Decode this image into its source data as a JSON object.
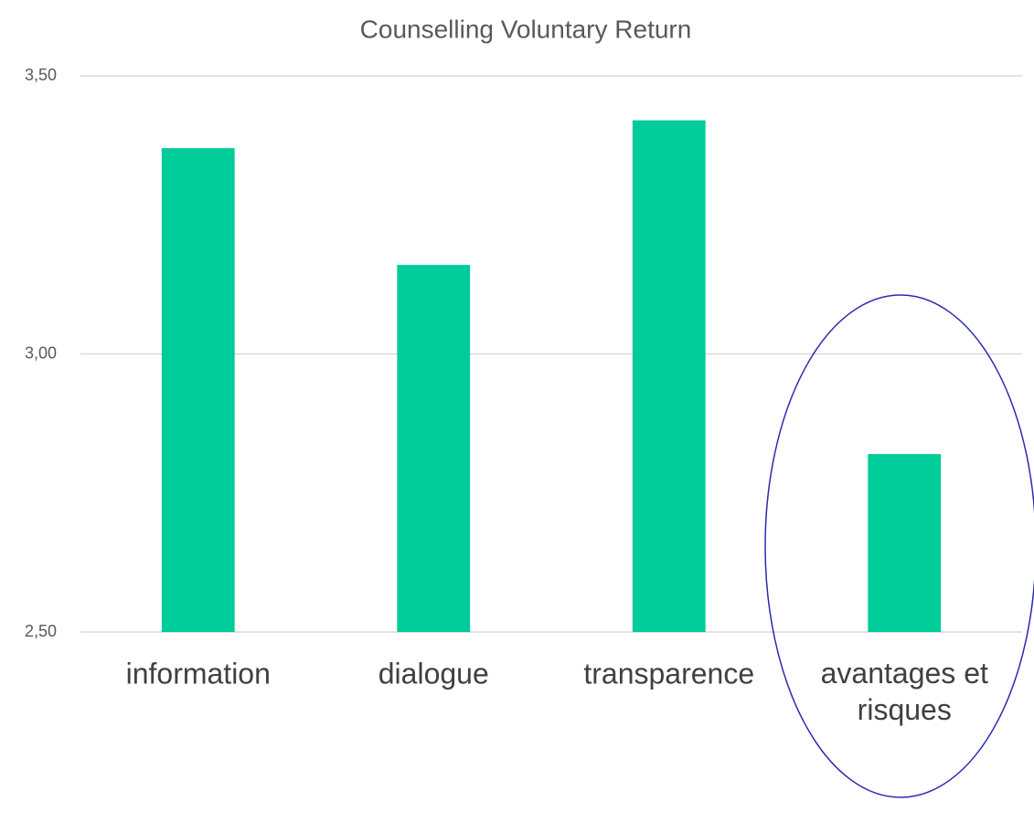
{
  "chart_data": {
    "type": "bar",
    "title": "Counselling Voluntary Return",
    "categories": [
      "information",
      "dialogue",
      "transparence",
      "avantages et risques"
    ],
    "values": [
      3.37,
      3.16,
      3.42,
      2.82
    ],
    "color": "#00cc99",
    "ylim": [
      2.5,
      3.5
    ],
    "yticks": [
      {
        "value": 2.5,
        "label": "2,50"
      },
      {
        "value": 3.0,
        "label": "3,00"
      },
      {
        "value": 3.5,
        "label": "3,50"
      }
    ],
    "grid": true
  }
}
